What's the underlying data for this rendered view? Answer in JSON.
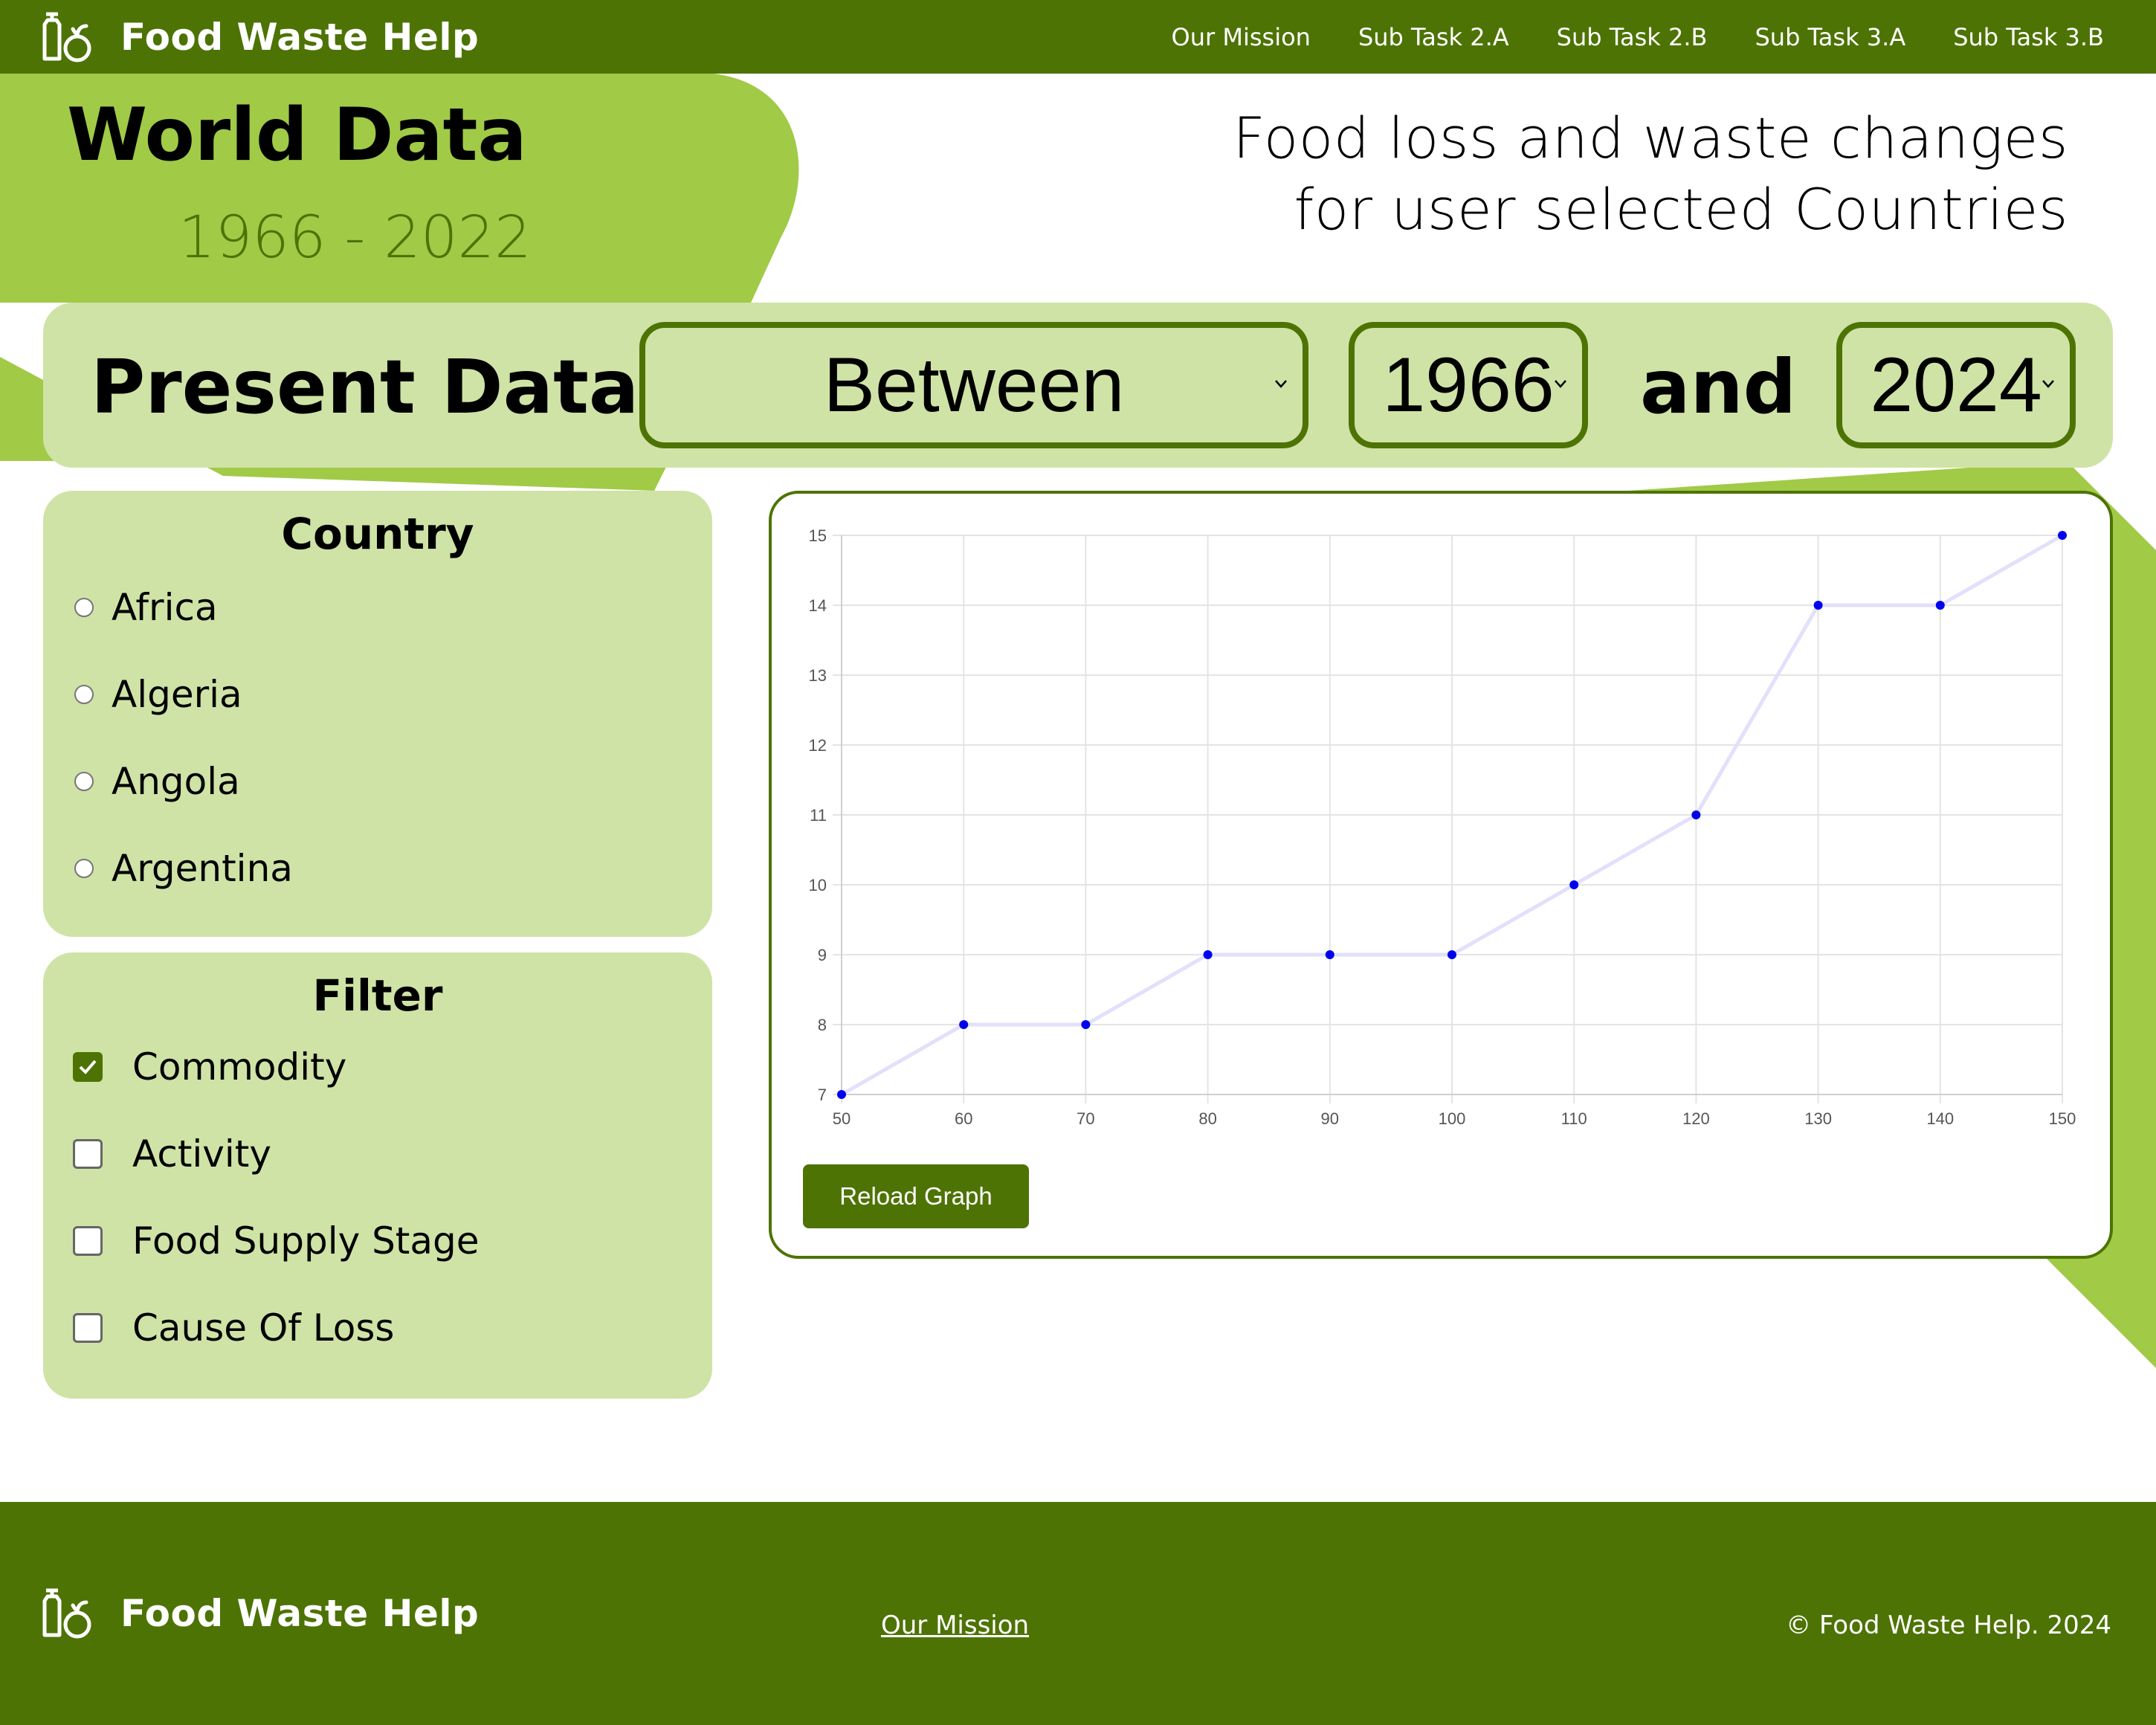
{
  "nav": {
    "brand": "Food Waste Help",
    "links": [
      "Our Mission",
      "Sub Task 2.A",
      "Sub Task 2.B",
      "Sub Task 3.A",
      "Sub Task 3.B"
    ]
  },
  "header": {
    "title": "World Data",
    "years": "1966 - 2022",
    "subtitle_line1": "Food loss and waste changes",
    "subtitle_line2": "for user selected Countries"
  },
  "controls": {
    "label": "Present Data",
    "mode": "Between",
    "from_year": "1966",
    "and_label": "and",
    "to_year": "2024"
  },
  "country_panel": {
    "title": "Country",
    "items": [
      "Africa",
      "Algeria",
      "Angola",
      "Argentina"
    ]
  },
  "filter_panel": {
    "title": "Filter",
    "items": [
      {
        "label": "Commodity",
        "checked": true
      },
      {
        "label": "Activity",
        "checked": false
      },
      {
        "label": "Food Supply Stage",
        "checked": false
      },
      {
        "label": "Cause Of Loss",
        "checked": false
      }
    ]
  },
  "chart_data": {
    "type": "line",
    "x": [
      50,
      60,
      70,
      80,
      90,
      100,
      110,
      120,
      130,
      140,
      150
    ],
    "y": [
      7,
      8,
      8,
      9,
      9,
      9,
      10,
      11,
      14,
      14,
      15
    ],
    "xticks": [
      "50",
      "60",
      "70",
      "80",
      "90",
      "100",
      "110",
      "120",
      "130",
      "140",
      "150"
    ],
    "yticks": [
      "7",
      "8",
      "9",
      "10",
      "11",
      "12",
      "13",
      "14",
      "15"
    ],
    "xlim": [
      50,
      150
    ],
    "ylim": [
      7,
      15
    ],
    "grid": true,
    "legend": "none",
    "line_color": "#e2e0fb",
    "point_color": "#0000ee"
  },
  "chart_actions": {
    "reload_label": "Reload Graph"
  },
  "footer": {
    "brand": "Food Waste Help",
    "link": "Our Mission",
    "copyright": "© Food Waste Help. 2024"
  },
  "colors": {
    "primary": "#4d7304",
    "light": "#cfe3a6",
    "accent": "#a1ca47"
  }
}
